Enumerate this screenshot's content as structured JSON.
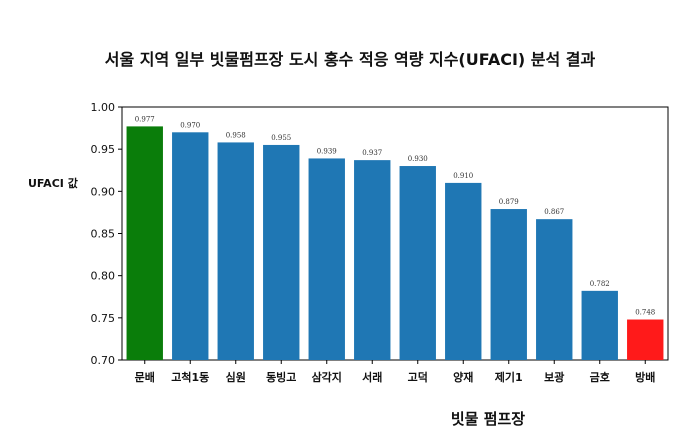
{
  "chart_data": {
    "type": "bar",
    "title": "서울 지역 일부 빗물펌프장 도시 홍수 적응 역량 지수(UFACI) 분석 결과",
    "xlabel": "빗물 펌프장",
    "ylabel": "UFACI 값",
    "ylim": [
      0.7,
      1.0
    ],
    "yticks": [
      "0.70",
      "0.75",
      "0.80",
      "0.85",
      "0.90",
      "0.95",
      "1.00"
    ],
    "categories": [
      "문배",
      "고척1동",
      "심원",
      "동빙고",
      "삼각지",
      "서래",
      "고덕",
      "양재",
      "제기1",
      "보광",
      "금호",
      "방배"
    ],
    "values": [
      0.977,
      0.97,
      0.958,
      0.955,
      0.939,
      0.937,
      0.93,
      0.91,
      0.879,
      0.867,
      0.782,
      0.748
    ],
    "value_labels": [
      "0.977",
      "0.970",
      "0.958",
      "0.955",
      "0.939",
      "0.937",
      "0.930",
      "0.910",
      "0.879",
      "0.867",
      "0.782",
      "0.748"
    ],
    "colors": [
      "#0a7d0a",
      "#1f77b4",
      "#1f77b4",
      "#1f77b4",
      "#1f77b4",
      "#1f77b4",
      "#1f77b4",
      "#1f77b4",
      "#1f77b4",
      "#1f77b4",
      "#1f77b4",
      "#ff1a1a"
    ],
    "grid": false,
    "legend": "none"
  }
}
